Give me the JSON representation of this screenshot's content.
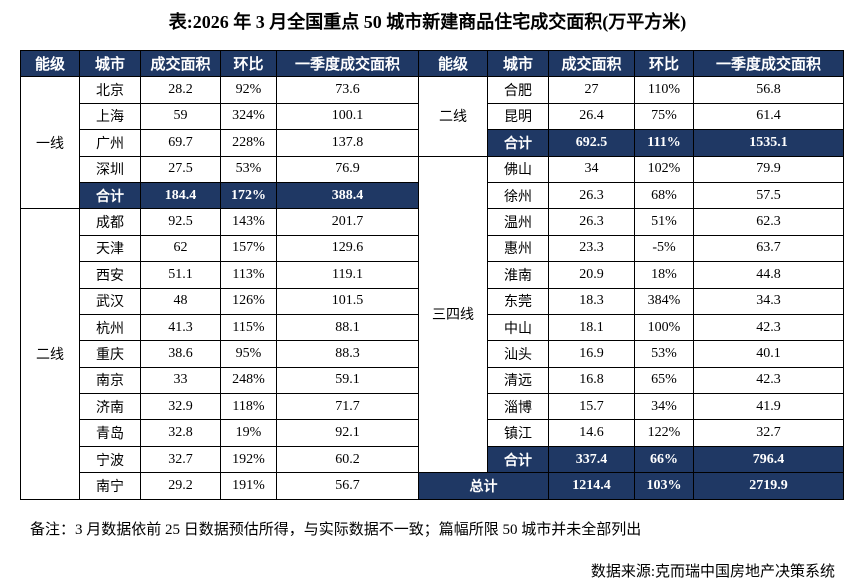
{
  "title": "表:2026 年 3 月全国重点 50 城市新建商品住宅成交面积(万平方米)",
  "left_table": {
    "header": [
      "能级",
      "城市",
      "成交面积",
      "环比",
      "一季度成交面积"
    ],
    "groups": [
      {
        "tier": "一线",
        "rows": [
          [
            "北京",
            "28.2",
            "92%",
            "73.6"
          ],
          [
            "上海",
            "59",
            "324%",
            "100.1"
          ],
          [
            "广州",
            "69.7",
            "228%",
            "137.8"
          ],
          [
            "深圳",
            "27.5",
            "53%",
            "76.9"
          ]
        ],
        "subtotal": [
          "合计",
          "184.4",
          "172%",
          "388.4"
        ]
      },
      {
        "tier": "二线",
        "rows": [
          [
            "成都",
            "92.5",
            "143%",
            "201.7"
          ],
          [
            "天津",
            "62",
            "157%",
            "129.6"
          ],
          [
            "西安",
            "51.1",
            "113%",
            "119.1"
          ],
          [
            "武汉",
            "48",
            "126%",
            "101.5"
          ],
          [
            "杭州",
            "41.3",
            "115%",
            "88.1"
          ],
          [
            "重庆",
            "38.6",
            "95%",
            "88.3"
          ],
          [
            "南京",
            "33",
            "248%",
            "59.1"
          ],
          [
            "济南",
            "32.9",
            "118%",
            "71.7"
          ],
          [
            "青岛",
            "32.8",
            "19%",
            "92.1"
          ],
          [
            "宁波",
            "32.7",
            "192%",
            "60.2"
          ],
          [
            "南宁",
            "29.2",
            "191%",
            "56.7"
          ]
        ]
      }
    ]
  },
  "right_table": {
    "header": [
      "能级",
      "城市",
      "成交面积",
      "环比",
      "一季度成交面积"
    ],
    "groups": [
      {
        "tier": "二线",
        "rows": [
          [
            "合肥",
            "27",
            "110%",
            "56.8"
          ],
          [
            "昆明",
            "26.4",
            "75%",
            "61.4"
          ]
        ],
        "subtotal": [
          "合计",
          "692.5",
          "111%",
          "1535.1"
        ]
      },
      {
        "tier": "三四线",
        "rows": [
          [
            "佛山",
            "34",
            "102%",
            "79.9"
          ],
          [
            "徐州",
            "26.3",
            "68%",
            "57.5"
          ],
          [
            "温州",
            "26.3",
            "51%",
            "62.3"
          ],
          [
            "惠州",
            "23.3",
            "-5%",
            "63.7"
          ],
          [
            "淮南",
            "20.9",
            "18%",
            "44.8"
          ],
          [
            "东莞",
            "18.3",
            "384%",
            "34.3"
          ],
          [
            "中山",
            "18.1",
            "100%",
            "42.3"
          ],
          [
            "汕头",
            "16.9",
            "53%",
            "40.1"
          ],
          [
            "清远",
            "16.8",
            "65%",
            "42.3"
          ],
          [
            "淄博",
            "15.7",
            "34%",
            "41.9"
          ],
          [
            "镇江",
            "14.6",
            "122%",
            "32.7"
          ]
        ],
        "subtotal": [
          "合计",
          "337.4",
          "66%",
          "796.4"
        ]
      }
    ],
    "grand_total": [
      "总计",
      "1214.4",
      "103%",
      "2719.9"
    ]
  },
  "note": "备注：3 月数据依前 25 日数据预估所得，与实际数据不一致；篇幅所限 50 城市并未全部列出",
  "source": "数据来源:克而瑞中国房地产决策系统"
}
